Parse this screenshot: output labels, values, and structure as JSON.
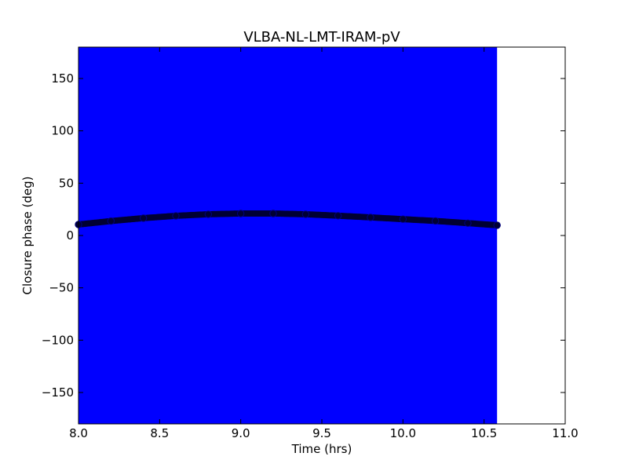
{
  "chart_data": {
    "type": "scatter",
    "title": "VLBA-NL-LMT-IRAM-pV",
    "xlabel": "Time (hrs)",
    "ylabel": "Closure phase (deg)",
    "xlim": [
      8.0,
      11.0
    ],
    "ylim": [
      -180,
      180
    ],
    "xticks": [
      8.0,
      8.5,
      9.0,
      9.5,
      10.0,
      10.5,
      11.0
    ],
    "xtick_labels": [
      "8.0",
      "8.5",
      "9.0",
      "9.5",
      "10.0",
      "10.5",
      "11.0"
    ],
    "yticks": [
      -150,
      -100,
      -50,
      0,
      50,
      100,
      150
    ],
    "ytick_labels": [
      "−150",
      "−100",
      "−50",
      "0",
      "50",
      "100",
      "150"
    ],
    "grid": false,
    "legend": "none",
    "colors": {
      "band": "#0000ff",
      "points": "#000033",
      "point_edge": "#000080"
    },
    "band": {
      "x": [
        8.0,
        10.58
      ],
      "y": [
        -180,
        180
      ]
    },
    "series": [
      {
        "x": [
          8.0,
          8.2,
          8.4,
          8.6,
          8.8,
          9.0,
          9.2,
          9.4,
          9.6,
          9.8,
          10.0,
          10.2,
          10.4,
          10.58
        ],
        "y": [
          10.5,
          13.8,
          16.6,
          18.8,
          20.3,
          21.0,
          21.0,
          20.3,
          18.9,
          17.3,
          15.6,
          13.9,
          11.8,
          9.8
        ]
      }
    ]
  }
}
